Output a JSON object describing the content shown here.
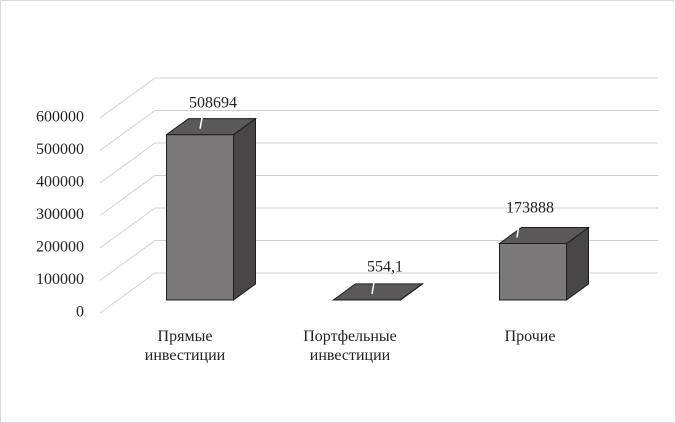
{
  "chart_data": {
    "type": "bar3d",
    "categories": [
      "Прямые инвестиции",
      "Портфельные инвестиции",
      "Прочие"
    ],
    "values": [
      508694,
      554.1,
      173888
    ],
    "value_labels": [
      "508694",
      "554,1",
      "173888"
    ],
    "color": "#7a7878",
    "ylim": [
      0,
      600000
    ],
    "yticks": [
      0,
      100000,
      200000,
      300000,
      400000,
      500000,
      600000
    ],
    "grid": true
  }
}
